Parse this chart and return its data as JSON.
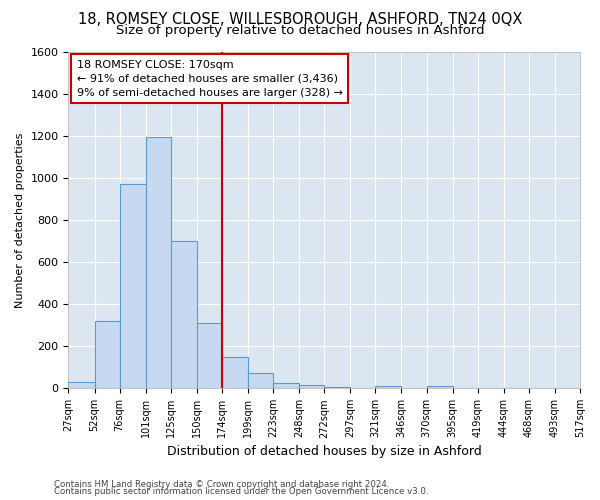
{
  "title1": "18, ROMSEY CLOSE, WILLESBOROUGH, ASHFORD, TN24 0QX",
  "title2": "Size of property relative to detached houses in Ashford",
  "xlabel": "Distribution of detached houses by size in Ashford",
  "ylabel": "Number of detached properties",
  "footer1": "Contains HM Land Registry data © Crown copyright and database right 2024.",
  "footer2": "Contains public sector information licensed under the Open Government Licence v3.0.",
  "bin_labels": [
    "27sqm",
    "52sqm",
    "76sqm",
    "101sqm",
    "125sqm",
    "150sqm",
    "174sqm",
    "199sqm",
    "223sqm",
    "248sqm",
    "272sqm",
    "297sqm",
    "321sqm",
    "346sqm",
    "370sqm",
    "395sqm",
    "419sqm",
    "444sqm",
    "468sqm",
    "493sqm",
    "517sqm"
  ],
  "bin_edges": [
    27,
    52,
    76,
    101,
    125,
    150,
    174,
    199,
    223,
    248,
    272,
    297,
    321,
    346,
    370,
    395,
    419,
    444,
    468,
    493,
    517
  ],
  "bar_heights": [
    30,
    320,
    970,
    1195,
    700,
    310,
    150,
    75,
    25,
    15,
    5,
    0,
    10,
    0,
    10,
    0,
    0,
    0,
    0,
    0
  ],
  "bar_color": "#c6d9f0",
  "bar_edge_color": "#5b9bd5",
  "vline_x": 174,
  "vline_color": "#cc0000",
  "annotation_line1": "18 ROMSEY CLOSE: 170sqm",
  "annotation_line2": "← 91% of detached houses are smaller (3,436)",
  "annotation_line3": "9% of semi-detached houses are larger (328) →",
  "annotation_box_color": "#ffffff",
  "annotation_box_edge": "#cc0000",
  "ylim": [
    0,
    1600
  ],
  "yticks": [
    0,
    200,
    400,
    600,
    800,
    1000,
    1200,
    1400,
    1600
  ],
  "bg_color": "#dce6f1",
  "fig_bg_color": "#ffffff",
  "grid_color": "#ffffff",
  "title1_fontsize": 10.5,
  "title2_fontsize": 9.5,
  "xlabel_fontsize": 9,
  "ylabel_fontsize": 8
}
